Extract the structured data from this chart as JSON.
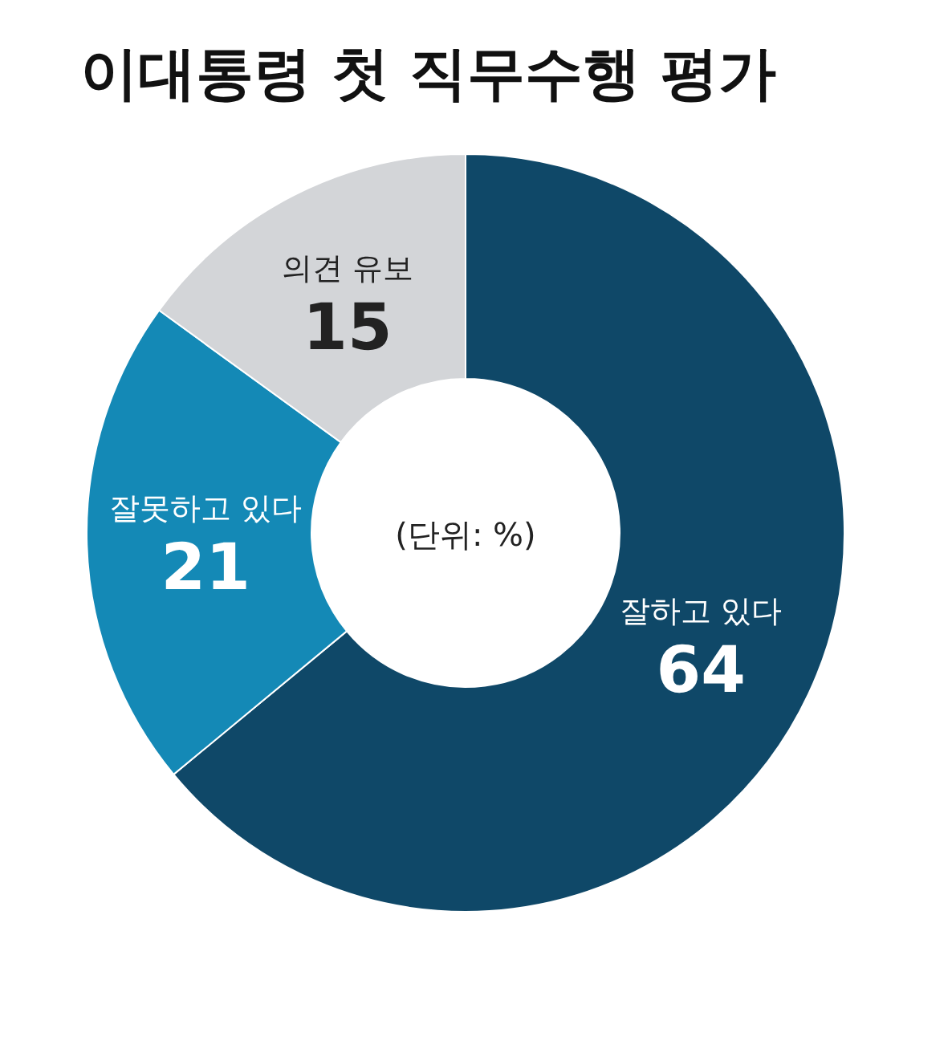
{
  "chart_data": {
    "type": "donut",
    "title": "이대통령 첫 직무수행 평가",
    "categories": [
      "잘하고 있다",
      "잘못하고 있다",
      "의견 유보"
    ],
    "values": [
      64,
      21,
      15
    ],
    "colors": [
      "#0f4868",
      "#1489b6",
      "#d3d5d8"
    ],
    "data_labels": true,
    "annotations": [
      "(단위: %)"
    ]
  }
}
